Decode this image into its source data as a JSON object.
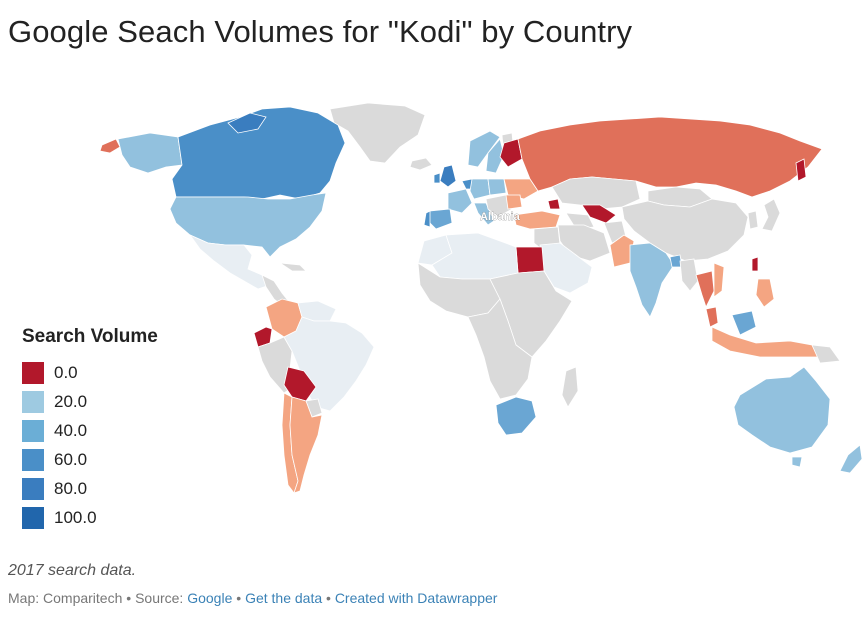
{
  "title": "Google Seach Volumes for \"Kodi\" by Country",
  "map_label": "Albania",
  "legend": {
    "title": "Search Volume",
    "items": [
      {
        "label": "0.0",
        "color": "#b2182b"
      },
      {
        "label": "20.0",
        "color": "#9ecae1"
      },
      {
        "label": "40.0",
        "color": "#6baed6"
      },
      {
        "label": "60.0",
        "color": "#4a8fc8"
      },
      {
        "label": "80.0",
        "color": "#3a7dbf"
      },
      {
        "label": "100.0",
        "color": "#2166ac"
      }
    ]
  },
  "colors": {
    "no_data": "#dadada",
    "red_dark": "#b2182b",
    "red": "#e0705a",
    "salmon": "#f4a582",
    "pale": "#e8eef3",
    "blue_light": "#92c1de",
    "blue": "#6aa6d3",
    "blue_mid": "#4a8fc8",
    "blue_dark": "#3a7dbf"
  },
  "note": "2017 search data.",
  "footer": {
    "map_by": "Map: Comparitech",
    "sep1": " • ",
    "source_prefix": "Source: ",
    "source": "Google",
    "sep2": " • ",
    "get_data": "Get the data",
    "sep3": " • ",
    "created_with": "Created with Datawrapper"
  }
}
